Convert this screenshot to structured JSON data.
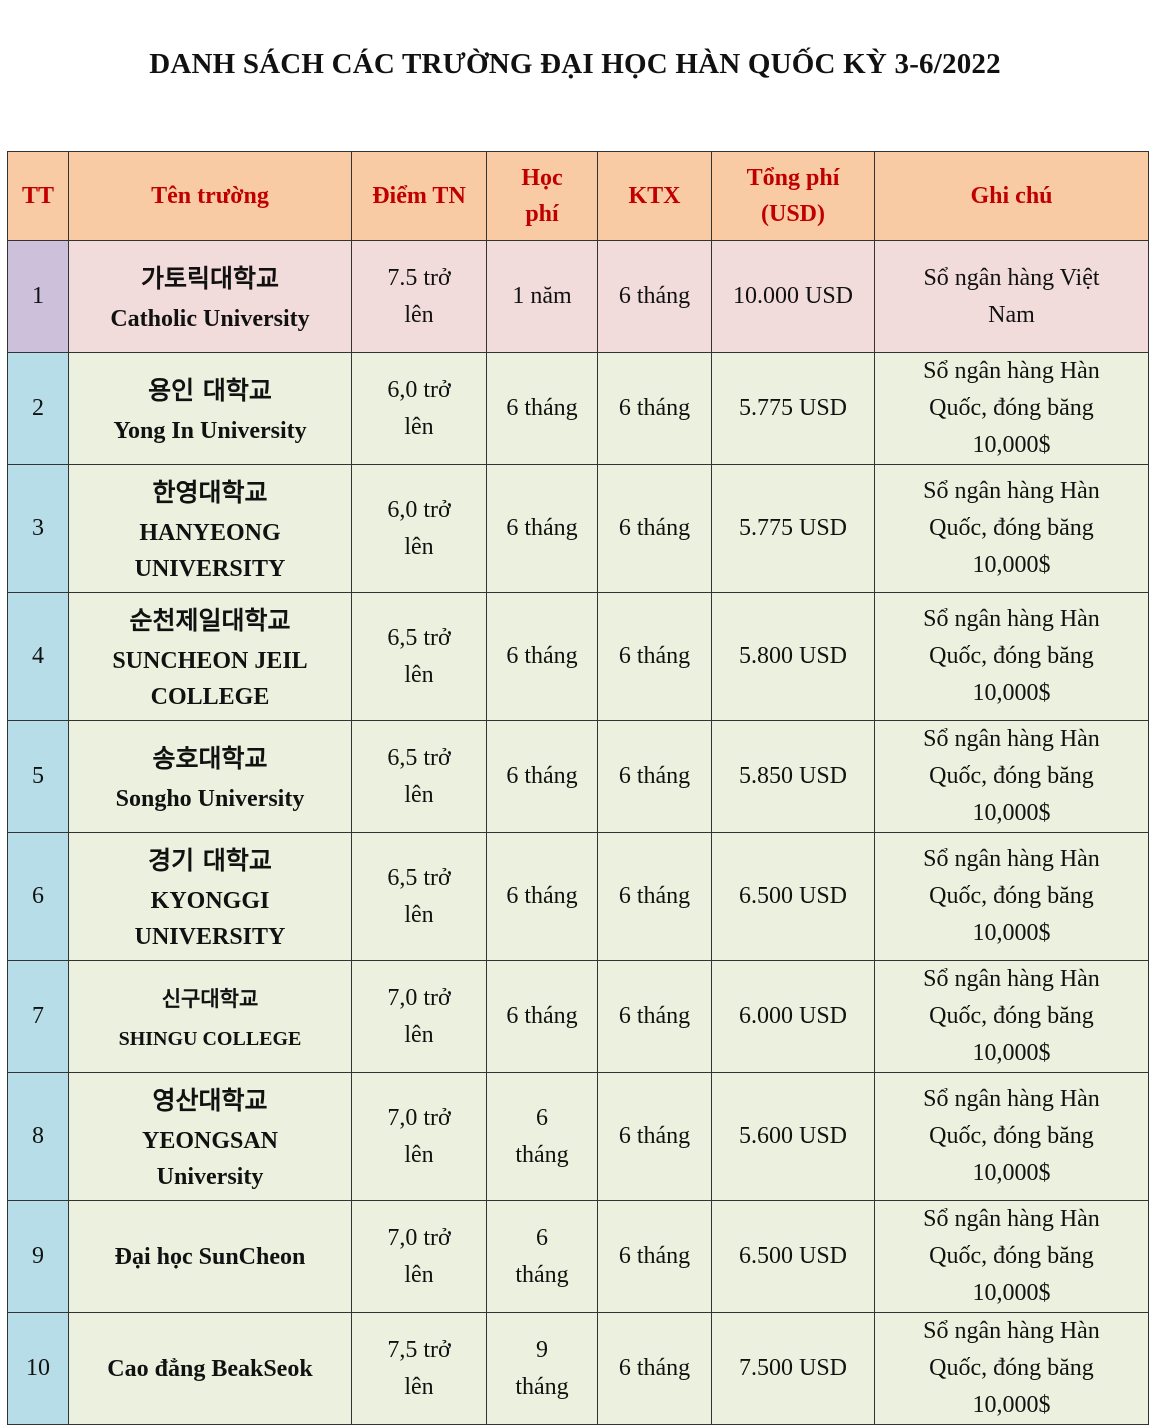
{
  "title": "DANH SÁCH CÁC TRƯỜNG ĐẠI HỌC HÀN QUỐC KỲ 3-6/2022",
  "headers": {
    "tt": "TT",
    "name": "Tên trường",
    "score": "Điểm TN",
    "fee_1": "Học",
    "fee_2": "phí",
    "dorm": "KTX",
    "total_1": "Tổng phí",
    "total_2": "(USD)",
    "note": "Ghi chú"
  },
  "rows": [
    {
      "tt": "1",
      "kr": "가토릭대학교",
      "en1": "Catholic University",
      "en2": "",
      "score1": "7.5 trở",
      "score2": "lên",
      "fee1": "1 năm",
      "fee2": "",
      "dorm": "6 tháng",
      "total": "10.000 USD",
      "note1": "Sổ ngân hàng Việt",
      "note2": "Nam",
      "note3": ""
    },
    {
      "tt": "2",
      "kr": "용인 대학교",
      "en1": "Yong In University",
      "en2": "",
      "score1": "6,0 trở",
      "score2": "lên",
      "fee1": "6 tháng",
      "fee2": "",
      "dorm": "6 tháng",
      "total": "5.775 USD",
      "note1": "Sổ ngân hàng Hàn",
      "note2": "Quốc, đóng băng",
      "note3": "10,000$"
    },
    {
      "tt": "3",
      "kr": "한영대학교",
      "en1": "HANYEONG",
      "en2": "UNIVERSITY",
      "score1": "6,0 trở",
      "score2": "lên",
      "fee1": "6 tháng",
      "fee2": "",
      "dorm": "6 tháng",
      "total": "5.775 USD",
      "note1": "Sổ ngân hàng Hàn",
      "note2": "Quốc, đóng băng",
      "note3": "10,000$"
    },
    {
      "tt": "4",
      "kr": "순천제일대학교",
      "en1": "SUNCHEON JEIL",
      "en2": "COLLEGE",
      "score1": "6,5 trở",
      "score2": "lên",
      "fee1": "6 tháng",
      "fee2": "",
      "dorm": "6 tháng",
      "total": "5.800 USD",
      "note1": "Sổ ngân hàng Hàn",
      "note2": "Quốc, đóng băng",
      "note3": "10,000$"
    },
    {
      "tt": "5",
      "kr": "송호대학교",
      "en1": "Songho University",
      "en2": "",
      "score1": "6,5 trở",
      "score2": "lên",
      "fee1": "6 tháng",
      "fee2": "",
      "dorm": "6 tháng",
      "total": "5.850 USD",
      "note1": "Sổ ngân hàng Hàn",
      "note2": "Quốc, đóng băng",
      "note3": "10,000$"
    },
    {
      "tt": "6",
      "kr": "경기 대학교",
      "en1": "KYONGGI",
      "en2": "UNIVERSITY",
      "score1": "6,5 trở",
      "score2": "lên",
      "fee1": "6 tháng",
      "fee2": "",
      "dorm": "6 tháng",
      "total": "6.500 USD",
      "note1": "Sổ ngân hàng Hàn",
      "note2": "Quốc, đóng băng",
      "note3": "10,000$"
    },
    {
      "tt": "7",
      "kr": "신구대학교",
      "en1": "SHINGU COLLEGE",
      "en2": "",
      "score1": "7,0 trở",
      "score2": "lên",
      "fee1": "6 tháng",
      "fee2": "",
      "dorm": "6 tháng",
      "total": "6.000 USD",
      "note1": "Sổ ngân hàng Hàn",
      "note2": "Quốc, đóng băng",
      "note3": "10,000$"
    },
    {
      "tt": "8",
      "kr": "영산대학교",
      "en1": "YEONGSAN",
      "en2": "University",
      "score1": "7,0 trở",
      "score2": "lên",
      "fee1": "6",
      "fee2": "tháng",
      "dorm": "6 tháng",
      "total": "5.600 USD",
      "note1": "Sổ ngân hàng Hàn",
      "note2": "Quốc, đóng băng",
      "note3": "10,000$"
    },
    {
      "tt": "9",
      "kr": "",
      "en1": "Đại học SunCheon",
      "en2": "",
      "score1": "7,0 trở",
      "score2": "lên",
      "fee1": "6",
      "fee2": "tháng",
      "dorm": "6 tháng",
      "total": "6.500 USD",
      "note1": "Sổ ngân hàng Hàn",
      "note2": "Quốc, đóng băng",
      "note3": "10,000$"
    },
    {
      "tt": "10",
      "kr": "",
      "en1": "Cao đẳng BeakSeok",
      "en2": "",
      "score1": "7,5 trở",
      "score2": "lên",
      "fee1": "9",
      "fee2": "tháng",
      "dorm": "6 tháng",
      "total": "7.500 USD",
      "note1": "Sổ ngân hàng Hàn",
      "note2": "Quốc, đóng băng",
      "note3": "10,000$"
    }
  ]
}
